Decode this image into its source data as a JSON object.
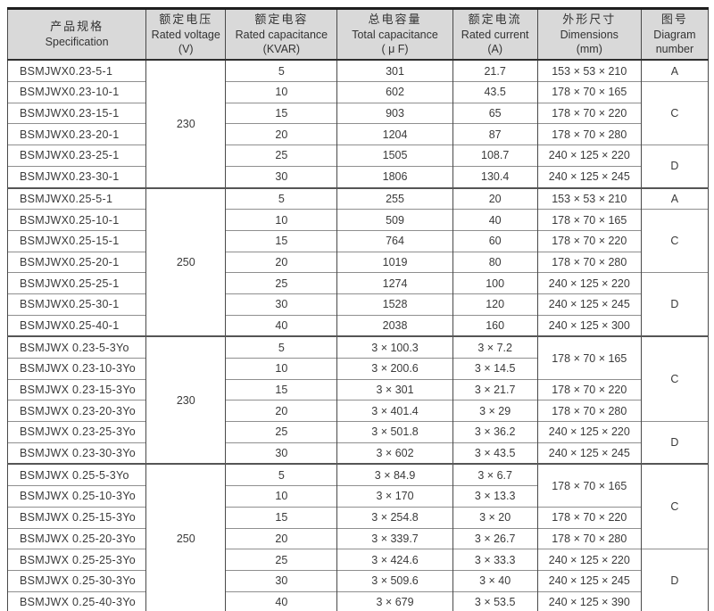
{
  "header": {
    "columns": [
      {
        "key": "specification",
        "zh": "产品规格",
        "en": "Specification",
        "unit": ""
      },
      {
        "key": "rated-voltage",
        "zh": "额定电压",
        "en": "Rated voltage",
        "unit": "(V)"
      },
      {
        "key": "rated-capacitance",
        "zh": "额定电容",
        "en": "Rated capacitance",
        "unit": "(KVAR)"
      },
      {
        "key": "total-capacitance",
        "zh": "总电容量",
        "en": "Total capacitance",
        "unit": "( μ F)"
      },
      {
        "key": "rated-current",
        "zh": "额定电流",
        "en": "Rated current",
        "unit": "(A)"
      },
      {
        "key": "dimensions",
        "zh": "外形尺寸",
        "en": "Dimensions",
        "unit": "(mm)"
      },
      {
        "key": "diagram-number",
        "zh": "图号",
        "en": "Diagram number",
        "unit": ""
      }
    ]
  },
  "colors": {
    "header_background": "#d9d9d9",
    "row_line": "#8f8f8f",
    "grid_line": "#4a4a4a",
    "text": "#3a3a3a"
  },
  "sections": [
    {
      "rated_voltage": "230",
      "rows": [
        [
          "BSMJWX0.23-5-1",
          {
            "text": "230",
            "rowspan": 6
          },
          "5",
          "301",
          "21.7",
          "153 × 53 × 210",
          "A"
        ],
        [
          "BSMJWX0.23-10-1",
          null,
          "10",
          "602",
          "43.5",
          "178 × 70 × 165",
          {
            "text": "C",
            "rowspan": 3
          }
        ],
        [
          "BSMJWX0.23-15-1",
          null,
          "15",
          "903",
          "65",
          "178 × 70 × 220",
          null
        ],
        [
          "BSMJWX0.23-20-1",
          null,
          "20",
          "1204",
          "87",
          "178 × 70 × 280",
          null
        ],
        [
          "BSMJWX0.23-25-1",
          null,
          "25",
          "1505",
          "108.7",
          "240 × 125 × 220",
          {
            "text": "D",
            "rowspan": 2
          }
        ],
        [
          "BSMJWX0.23-30-1",
          null,
          "30",
          "1806",
          "130.4",
          "240 × 125 × 245",
          null
        ]
      ]
    },
    {
      "rated_voltage": "250",
      "rows": [
        [
          "BSMJWX0.25-5-1",
          {
            "text": "250",
            "rowspan": 7
          },
          "5",
          "255",
          "20",
          "153 × 53 × 210",
          "A"
        ],
        [
          "BSMJWX0.25-10-1",
          null,
          "10",
          "509",
          "40",
          "178 × 70 × 165",
          {
            "text": "C",
            "rowspan": 3
          }
        ],
        [
          "BSMJWX0.25-15-1",
          null,
          "15",
          "764",
          "60",
          "178 × 70 × 220",
          null
        ],
        [
          "BSMJWX0.25-20-1",
          null,
          "20",
          "1019",
          "80",
          "178 × 70 × 280",
          null
        ],
        [
          "BSMJWX0.25-25-1",
          null,
          "25",
          "1274",
          "100",
          "240 × 125 × 220",
          {
            "text": "D",
            "rowspan": 3
          }
        ],
        [
          "BSMJWX0.25-30-1",
          null,
          "30",
          "1528",
          "120",
          "240 × 125 × 245",
          null
        ],
        [
          "BSMJWX0.25-40-1",
          null,
          "40",
          "2038",
          "160",
          "240 × 125 × 300",
          null
        ]
      ]
    },
    {
      "rated_voltage": "230",
      "rows": [
        [
          "BSMJWX 0.23-5-3Yo",
          {
            "text": "230",
            "rowspan": 6
          },
          "5",
          "3 × 100.3",
          "3 × 7.2",
          {
            "text": "178 × 70 × 165",
            "rowspan": 2
          },
          {
            "text": "C",
            "rowspan": 4
          }
        ],
        [
          "BSMJWX 0.23-10-3Yo",
          null,
          "10",
          "3 × 200.6",
          "3 × 14.5",
          null,
          null
        ],
        [
          "BSMJWX 0.23-15-3Yo",
          null,
          "15",
          "3 × 301",
          "3 × 21.7",
          "178 × 70 × 220",
          null
        ],
        [
          "BSMJWX 0.23-20-3Yo",
          null,
          "20",
          "3 × 401.4",
          "3 × 29",
          "178 × 70 × 280",
          null
        ],
        [
          "BSMJWX 0.23-25-3Yo",
          null,
          "25",
          "3 × 501.8",
          "3 × 36.2",
          "240 × 125 × 220",
          {
            "text": "D",
            "rowspan": 2
          }
        ],
        [
          "BSMJWX 0.23-30-3Yo",
          null,
          "30",
          "3 × 602",
          "3 × 43.5",
          "240 × 125 × 245",
          null
        ]
      ]
    },
    {
      "rated_voltage": "250",
      "rows": [
        [
          "BSMJWX 0.25-5-3Yo",
          {
            "text": "250",
            "rowspan": 7
          },
          "5",
          "3 × 84.9",
          "3 × 6.7",
          {
            "text": "178 × 70 × 165",
            "rowspan": 2
          },
          {
            "text": "C",
            "rowspan": 4
          }
        ],
        [
          "BSMJWX 0.25-10-3Yo",
          null,
          "10",
          "3 × 170",
          "3 × 13.3",
          null,
          null
        ],
        [
          "BSMJWX 0.25-15-3Yo",
          null,
          "15",
          "3 × 254.8",
          "3 × 20",
          "178 × 70 × 220",
          null
        ],
        [
          "BSMJWX 0.25-20-3Yo",
          null,
          "20",
          "3 × 339.7",
          "3 × 26.7",
          "178 × 70 × 280",
          null
        ],
        [
          "BSMJWX 0.25-25-3Yo",
          null,
          "25",
          "3 × 424.6",
          "3 × 33.3",
          "240 × 125 × 220",
          {
            "text": "D",
            "rowspan": 3
          }
        ],
        [
          "BSMJWX 0.25-30-3Yo",
          null,
          "30",
          "3 × 509.6",
          "3 × 40",
          "240 × 125 × 245",
          null
        ],
        [
          "BSMJWX 0.25-40-3Yo",
          null,
          "40",
          "3 × 679",
          "3 × 53.5",
          "240 × 125 × 390",
          null
        ]
      ]
    }
  ]
}
